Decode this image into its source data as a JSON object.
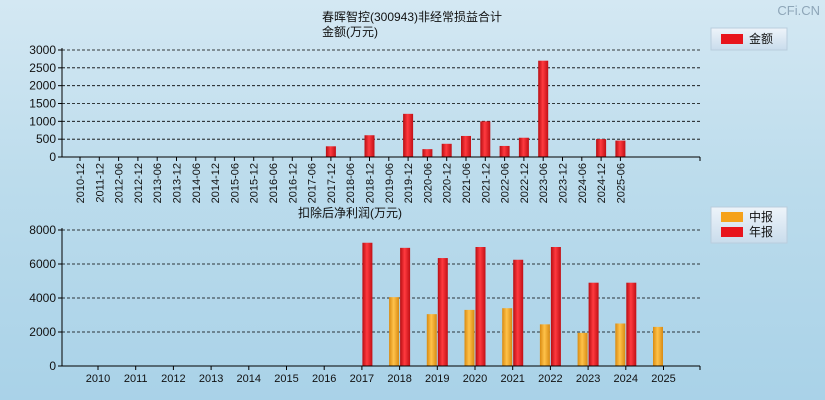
{
  "watermark": "CFi.CN",
  "chart_data": [
    {
      "type": "bar",
      "title": "春晖智控(300943)非经常损益合计",
      "ylabel": "金额(万元)",
      "ylim": [
        0,
        3000
      ],
      "yticks": [
        0,
        500,
        1000,
        1500,
        2000,
        2500,
        3000
      ],
      "grid": true,
      "legend_position": "top-right",
      "categories": [
        "2010-12",
        "2011-12",
        "2012-06",
        "2012-12",
        "2013-06",
        "2013-12",
        "2014-06",
        "2014-12",
        "2015-06",
        "2015-12",
        "2016-06",
        "2016-12",
        "2017-06",
        "2017-12",
        "2018-06",
        "2018-12",
        "2019-06",
        "2019-12",
        "2020-06",
        "2020-12",
        "2021-06",
        "2021-12",
        "2022-06",
        "2022-12",
        "2023-06",
        "2023-12",
        "2024-06",
        "2024-12",
        "2025-06"
      ],
      "series": [
        {
          "name": "金额",
          "color": "#e8141c",
          "values": [
            null,
            null,
            null,
            null,
            null,
            null,
            null,
            null,
            null,
            null,
            null,
            null,
            null,
            300,
            null,
            610,
            null,
            1210,
            220,
            370,
            590,
            1000,
            310,
            540,
            2700,
            null,
            null,
            500,
            460
          ]
        }
      ]
    },
    {
      "type": "bar",
      "title": "扣除后净利润(万元)",
      "ylim": [
        0,
        8000
      ],
      "yticks": [
        0,
        2000,
        4000,
        6000,
        8000
      ],
      "grid": true,
      "legend_position": "top-right",
      "categories": [
        "2010",
        "2011",
        "2012",
        "2013",
        "2014",
        "2015",
        "2016",
        "2017",
        "2018",
        "2019",
        "2020",
        "2021",
        "2022",
        "2023",
        "2024",
        "2025"
      ],
      "series": [
        {
          "name": "中报",
          "color": "#f5a21b",
          "values": [
            null,
            null,
            null,
            null,
            null,
            null,
            null,
            null,
            4050,
            3050,
            3300,
            3400,
            2450,
            1950,
            2500,
            2300
          ]
        },
        {
          "name": "年报",
          "color": "#e8141c",
          "values": [
            null,
            null,
            null,
            null,
            null,
            null,
            null,
            7250,
            6950,
            6350,
            7000,
            6250,
            7000,
            4900,
            4900,
            null
          ]
        }
      ]
    }
  ]
}
